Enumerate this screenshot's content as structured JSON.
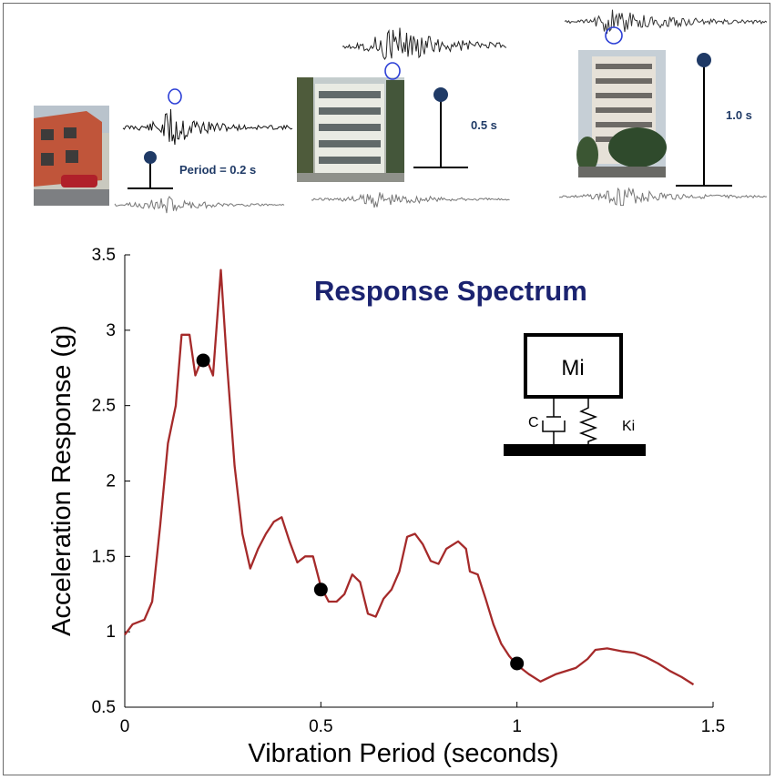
{
  "illustration": {
    "period_labels": [
      "Period = 0.2 s",
      "0.5 s",
      "1.0 s"
    ],
    "oscillator": {
      "mass_label": "Mi",
      "damper_label": "C",
      "spring_label": "Ki"
    }
  },
  "chart_data": {
    "type": "line",
    "title": "Response Spectrum",
    "xlabel": "Vibration Period (seconds)",
    "ylabel": "Acceleration Response (g)",
    "xlim": [
      0,
      1.5
    ],
    "ylim": [
      0.5,
      3.5
    ],
    "xticks": [
      "0",
      "0.5",
      "1",
      "1.5"
    ],
    "yticks": [
      "0.5",
      "1",
      "1.5",
      "2",
      "2.5",
      "3",
      "3.5"
    ],
    "grid": false,
    "series": [
      {
        "color": "#a52a2a",
        "x": [
          0.0,
          0.02,
          0.04,
          0.05,
          0.07,
          0.09,
          0.11,
          0.13,
          0.145,
          0.165,
          0.18,
          0.195,
          0.21,
          0.225,
          0.245,
          0.26,
          0.28,
          0.3,
          0.32,
          0.34,
          0.36,
          0.38,
          0.4,
          0.42,
          0.44,
          0.46,
          0.48,
          0.5,
          0.52,
          0.54,
          0.56,
          0.58,
          0.6,
          0.62,
          0.64,
          0.66,
          0.68,
          0.7,
          0.72,
          0.74,
          0.76,
          0.78,
          0.8,
          0.82,
          0.85,
          0.87,
          0.88,
          0.9,
          0.92,
          0.94,
          0.96,
          0.98,
          1.0,
          1.03,
          1.06,
          1.1,
          1.15,
          1.18,
          1.2,
          1.23,
          1.27,
          1.3,
          1.33,
          1.36,
          1.39,
          1.42,
          1.45
        ],
        "y": [
          0.98,
          1.05,
          1.07,
          1.08,
          1.2,
          1.7,
          2.25,
          2.5,
          2.97,
          2.97,
          2.7,
          2.8,
          2.8,
          2.7,
          3.4,
          2.8,
          2.1,
          1.65,
          1.42,
          1.55,
          1.65,
          1.73,
          1.76,
          1.6,
          1.46,
          1.5,
          1.5,
          1.3,
          1.2,
          1.2,
          1.25,
          1.38,
          1.33,
          1.12,
          1.1,
          1.22,
          1.28,
          1.4,
          1.63,
          1.65,
          1.58,
          1.47,
          1.45,
          1.55,
          1.6,
          1.55,
          1.4,
          1.38,
          1.22,
          1.05,
          0.92,
          0.84,
          0.78,
          0.72,
          0.67,
          0.72,
          0.76,
          0.82,
          0.88,
          0.89,
          0.87,
          0.86,
          0.83,
          0.79,
          0.74,
          0.7,
          0.65
        ]
      }
    ],
    "highlighted_points": [
      {
        "x": 0.2,
        "y": 2.8
      },
      {
        "x": 0.5,
        "y": 1.28
      },
      {
        "x": 1.0,
        "y": 0.79
      }
    ]
  }
}
